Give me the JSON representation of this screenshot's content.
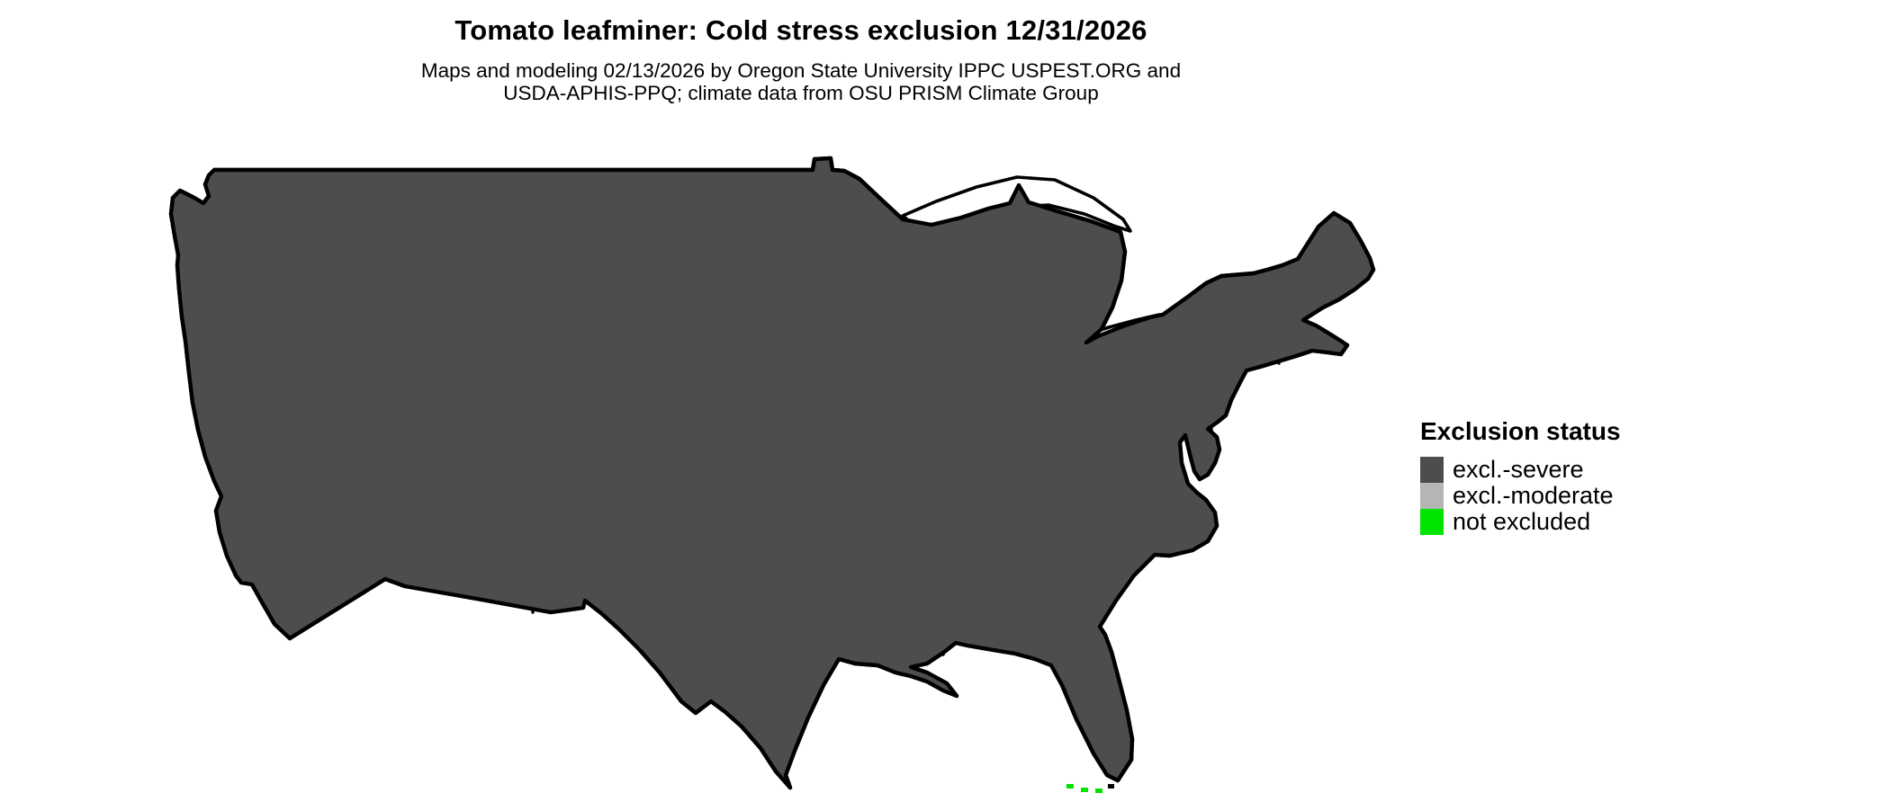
{
  "header": {
    "title": "Tomato leafminer: Cold stress exclusion 12/31/2026",
    "subtitle_line1": "Maps and modeling 02/13/2026 by Oregon State University IPPC USPEST.ORG and",
    "subtitle_line2": "USDA-APHIS-PPQ; climate data from OSU PRISM Climate Group"
  },
  "legend": {
    "title": "Exclusion status",
    "items": [
      {
        "key": "severe",
        "label": "excl.-severe",
        "color": "#4d4d4d"
      },
      {
        "key": "moderate",
        "label": "excl.-moderate",
        "color": "#b5b5b5"
      },
      {
        "key": "not_excluded",
        "label": "not excluded",
        "color": "#00e400"
      }
    ]
  },
  "map": {
    "border_color": "#000000",
    "water_color": "#ffffff",
    "background_color": "#ffffff"
  }
}
